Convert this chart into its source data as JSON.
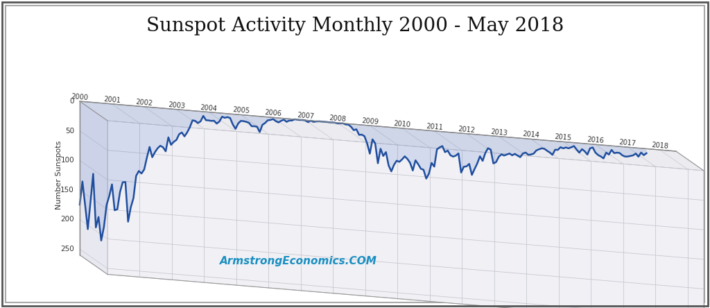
{
  "title": "Sunspot Activity Monthly 2000 - May 2018",
  "ylabel": "Number Sunspots",
  "watermark": "ArmstrongEconomics.COM",
  "watermark_color": "#1a8fc1",
  "line_color": "#1f4e9e",
  "fill_color": "#2b5fad",
  "background_color": "#ffffff",
  "border_color": "#888888",
  "grid_color": "#c8c8d0",
  "floor_color": "#e8e8ee",
  "wall_color": "#f0f0f5",
  "title_fontsize": 20,
  "ylabel_fontsize": 8,
  "tick_fontsize": 7.5,
  "yticks": [
    0,
    50,
    100,
    150,
    200,
    250
  ],
  "xtick_years": [
    2000,
    2001,
    2002,
    2003,
    2004,
    2005,
    2006,
    2007,
    2008,
    2009,
    2010,
    2011,
    2012,
    2013,
    2014,
    2015,
    2016,
    2017,
    2018
  ],
  "sunspot_data": [
    174.9,
    135.3,
    174.5,
    215.2,
    168.8,
    120.8,
    211.2,
    193.2,
    232.5,
    209.4,
    171.5,
    156.1,
    136.0,
    179.4,
    177.3,
    147.7,
    130.9,
    130.1,
    196.8,
    172.3,
    156.2,
    118.2,
    109.6,
    113.4,
    106.2,
    85.8,
    67.4,
    84.3,
    75.5,
    68.4,
    63.8,
    66.0,
    72.5,
    48.5,
    60.7,
    55.3,
    51.6,
    41.7,
    38.3,
    44.5,
    37.4,
    28.2,
    16.2,
    16.8,
    20.1,
    16.7,
    7.2,
    14.1,
    14.1,
    14.5,
    13.9,
    18.3,
    14.4,
    5.9,
    7.4,
    5.8,
    7.1,
    17.6,
    24.6,
    15.0,
    10.3,
    10.4,
    11.1,
    12.5,
    17.8,
    17.5,
    17.9,
    26.6,
    14.0,
    10.5,
    5.5,
    4.5,
    2.7,
    5.8,
    7.6,
    4.4,
    2.2,
    5.4,
    2.9,
    2.5,
    0.0,
    0.3,
    0.4,
    0.0,
    0.5,
    2.9,
    0.0,
    1.7,
    0.6,
    0.0,
    0.0,
    0.0,
    0.0,
    0.2,
    0.0,
    0.0,
    0.9,
    0.4,
    0.0,
    1.5,
    1.4,
    4.6,
    10.0,
    8.2,
    17.2,
    16.5,
    18.7,
    30.6,
    47.5,
    22.9,
    29.4,
    62.6,
    37.7,
    49.5,
    42.6,
    64.8,
    74.4,
    63.0,
    55.6,
    57.2,
    52.7,
    47.1,
    51.1,
    57.4,
    69.9,
    52.3,
    58.4,
    65.8,
    67.1,
    81.7,
    73.0,
    54.4,
    60.3,
    30.6,
    27.0,
    24.4,
    34.3,
    31.3,
    38.7,
    40.7,
    38.7,
    34.5,
    66.5,
    56.3,
    55.3,
    50.7,
    69.0,
    58.6,
    48.8,
    36.4,
    43.7,
    30.0,
    21.5,
    23.5,
    46.5,
    43.9,
    34.5,
    30.0,
    31.6,
    29.5,
    27.5,
    30.1,
    27.3,
    29.8,
    32.1,
    25.5,
    23.6,
    27.0,
    26.1,
    24.2,
    18.4,
    16.1,
    14.1,
    14.5,
    17.5,
    20.0,
    23.6,
    14.5,
    14.5,
    9.6,
    11.1,
    9.2,
    10.3,
    8.2,
    5.7,
    11.3,
    16.1,
    9.8,
    13.1,
    18.2,
    7.2,
    5.4,
    13.8,
    17.5,
    19.5,
    22.4,
    12.2,
    15.2,
    6.9,
    12.0,
    10.7,
    11.0,
    14.5,
    16.2,
    15.8,
    14.5,
    13.1,
    9.6,
    14.5,
    7.2,
    11.2,
    7.5
  ]
}
